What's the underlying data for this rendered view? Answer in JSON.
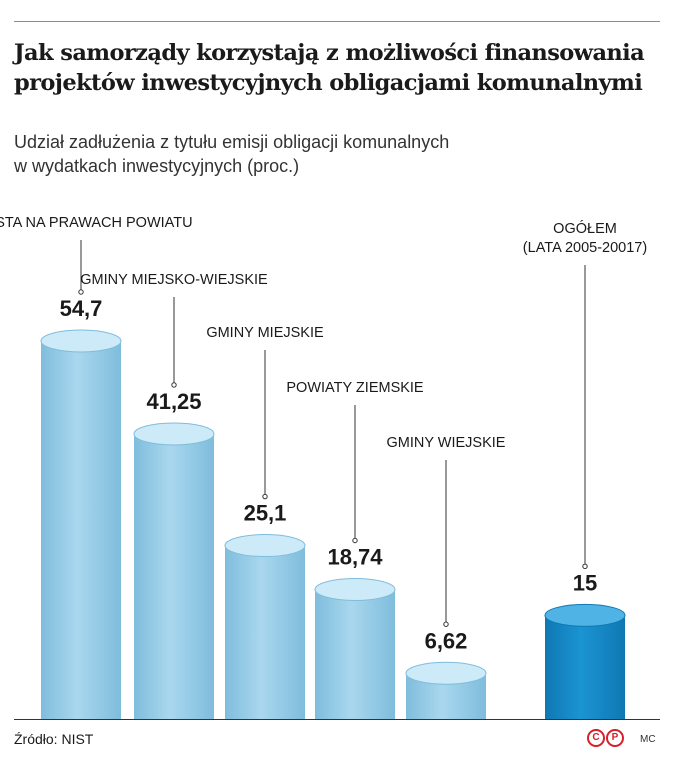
{
  "title": {
    "line1": "Jak samorządy korzystają z możliwości finansowania",
    "line2": "projektów inwestycyjnych obligacjami komunalnymi"
  },
  "subtitle": {
    "line1": "Udział zadłużenia z tytułu emisji obligacji komunalnych",
    "line2": "w wydatkach inwestycyjnych (proc.)"
  },
  "chart_data": {
    "type": "bar",
    "title": "Jak samorządy korzystają z możliwości finansowania projektów inwestycyjnych obligacjami komunalnymi",
    "subtitle": "Udział zadłużenia z tytułu emisji obligacji komunalnych w wydatkach inwestycyjnych (proc.)",
    "categories": [
      "MIASTA NA PRAWACH POWIATU",
      "GMINY MIEJSKO-WIEJSKIE",
      "GMINY MIEJSKIE",
      "POWIATY ZIEMSKIE",
      "GMINY WIEJSKIE",
      "OGÓŁEM (LATA 2005-20017)"
    ],
    "label_lines": [
      [
        "MIASTA NA PRAWACH POWIATU"
      ],
      [
        "GMINY MIEJSKO-WIEJSKIE"
      ],
      [
        "GMINY MIEJSKIE"
      ],
      [
        "POWIATY ZIEMSKIE"
      ],
      [
        "GMINY WIEJSKIE"
      ],
      [
        "OGÓŁEM",
        "(LATA 2005-20017)"
      ]
    ],
    "values": [
      54.7,
      41.25,
      25.1,
      18.74,
      6.62,
      15
    ],
    "value_labels": [
      "54,7",
      "41,25",
      "25,1",
      "18,74",
      "6,62",
      "15"
    ],
    "highlight_index": 5,
    "colors": {
      "bar": "#a9d7ee",
      "bar_top": "#cdeaf8",
      "bar_edge": "#7fbddc",
      "highlight": "#1b94d2",
      "highlight_top": "#4fb3e6",
      "highlight_edge": "#0f78b3",
      "leader": "#333333",
      "axis": "#333333"
    },
    "xlabel": "",
    "ylabel": "",
    "ylim": [
      0,
      54.7
    ],
    "grid": false,
    "legend": "none"
  },
  "footer": {
    "source": "Źródło: NIST",
    "logo_c": "C",
    "logo_p": "P",
    "author": "MC"
  }
}
